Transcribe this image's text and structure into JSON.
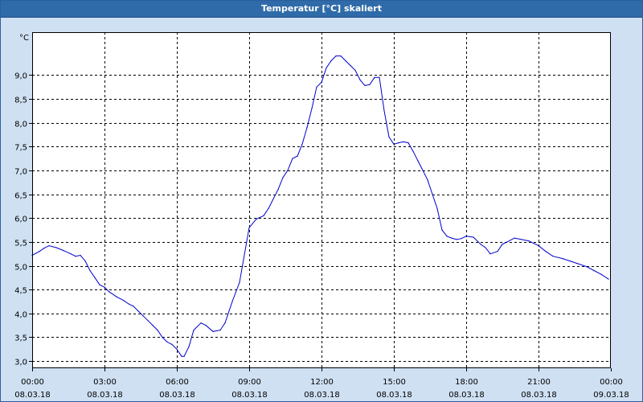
{
  "window": {
    "title": "Temperatur [°C] skaliert"
  },
  "chart_data": {
    "type": "line",
    "title": "Temperatur [°C] skaliert",
    "ylabel": "°C",
    "xlabel": "",
    "ylim": [
      2.85,
      9.9
    ],
    "xlim": [
      0,
      24
    ],
    "grid": true,
    "series_color": "#0000cc",
    "grid_color": "#000000",
    "plot_background": "#ffffff",
    "y_ticks": [
      "3,0",
      "3,5",
      "4,0",
      "4,5",
      "5,0",
      "5,5",
      "6,0",
      "6,5",
      "7,0",
      "7,5",
      "8,0",
      "8,5",
      "9,0"
    ],
    "y_tick_values": [
      3.0,
      3.5,
      4.0,
      4.5,
      5.0,
      5.5,
      6.0,
      6.5,
      7.0,
      7.5,
      8.0,
      8.5,
      9.0
    ],
    "x_ticks": [
      {
        "time": "00:00",
        "date": "08.03.18"
      },
      {
        "time": "03:00",
        "date": "08.03.18"
      },
      {
        "time": "06:00",
        "date": "08.03.18"
      },
      {
        "time": "09:00",
        "date": "08.03.18"
      },
      {
        "time": "12:00",
        "date": "08.03.18"
      },
      {
        "time": "15:00",
        "date": "08.03.18"
      },
      {
        "time": "18:00",
        "date": "08.03.18"
      },
      {
        "time": "21:00",
        "date": "08.03.18"
      },
      {
        "time": "00:00",
        "date": "09.03.18"
      }
    ],
    "x_tick_values": [
      0,
      3,
      6,
      9,
      12,
      15,
      18,
      21,
      24
    ],
    "series": [
      {
        "x": [
          0,
          0.3,
          0.5,
          0.7,
          1.0,
          1.3,
          1.6,
          1.8,
          2.0,
          2.2,
          2.4,
          2.6,
          2.8,
          3.0,
          3.2,
          3.5,
          3.8,
          4.0,
          4.2,
          4.4,
          4.6,
          4.8,
          5.0,
          5.2,
          5.4,
          5.6,
          5.8,
          6.0,
          6.2,
          6.3,
          6.5,
          6.7,
          7.0,
          7.2,
          7.5,
          7.8,
          8.0,
          8.3,
          8.6,
          9.0,
          9.3,
          9.6,
          9.8,
          10.0,
          10.2,
          10.4,
          10.6,
          10.8,
          11.0,
          11.2,
          11.4,
          11.6,
          11.8,
          12.0,
          12.2,
          12.4,
          12.6,
          12.8,
          13.0,
          13.2,
          13.4,
          13.6,
          13.8,
          14.0,
          14.2,
          14.4,
          14.6,
          14.8,
          15.0,
          15.2,
          15.4,
          15.6,
          15.8,
          16.0,
          16.2,
          16.4,
          16.6,
          16.8,
          17.0,
          17.2,
          17.4,
          17.6,
          17.8,
          18.0,
          18.3,
          18.6,
          18.8,
          19.0,
          19.3,
          19.5,
          19.7,
          20.0,
          20.3,
          20.6,
          21.0,
          21.3,
          21.6,
          22.0,
          22.3,
          22.6,
          23.0,
          23.3,
          23.6,
          23.9
        ],
        "y": [
          5.22,
          5.3,
          5.37,
          5.42,
          5.38,
          5.32,
          5.25,
          5.2,
          5.22,
          5.1,
          4.9,
          4.75,
          4.6,
          4.55,
          4.45,
          4.35,
          4.27,
          4.2,
          4.15,
          4.05,
          3.95,
          3.85,
          3.75,
          3.65,
          3.5,
          3.4,
          3.35,
          3.25,
          3.1,
          3.1,
          3.3,
          3.65,
          3.8,
          3.75,
          3.62,
          3.65,
          3.8,
          4.25,
          4.65,
          5.8,
          5.98,
          6.05,
          6.2,
          6.4,
          6.6,
          6.85,
          7.0,
          7.25,
          7.3,
          7.55,
          7.9,
          8.3,
          8.75,
          8.85,
          9.15,
          9.3,
          9.4,
          9.4,
          9.3,
          9.2,
          9.1,
          8.9,
          8.78,
          8.8,
          8.95,
          8.95,
          8.25,
          7.7,
          7.55,
          7.58,
          7.6,
          7.58,
          7.4,
          7.2,
          7.0,
          6.8,
          6.5,
          6.2,
          5.75,
          5.62,
          5.58,
          5.55,
          5.57,
          5.62,
          5.6,
          5.45,
          5.38,
          5.25,
          5.3,
          5.45,
          5.5,
          5.58,
          5.55,
          5.52,
          5.42,
          5.3,
          5.2,
          5.15,
          5.1,
          5.05,
          4.98,
          4.9,
          4.82,
          4.72
        ]
      }
    ]
  }
}
